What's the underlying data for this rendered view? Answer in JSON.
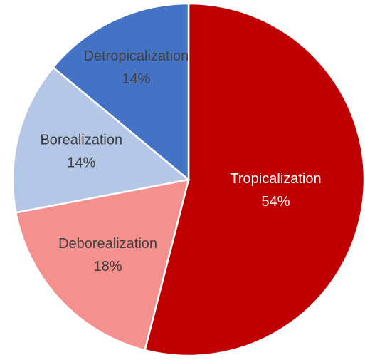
{
  "chart_data": {
    "type": "pie",
    "categories": [
      "Tropicalization",
      "Deborealization",
      "Borealization",
      "Detropicalization"
    ],
    "values": [
      54,
      18,
      14,
      14
    ],
    "value_labels": [
      "54%",
      "18%",
      "14%",
      "14%"
    ],
    "colors": [
      "#c00000",
      "#f4908e",
      "#b4c7e7",
      "#4472c4"
    ]
  }
}
